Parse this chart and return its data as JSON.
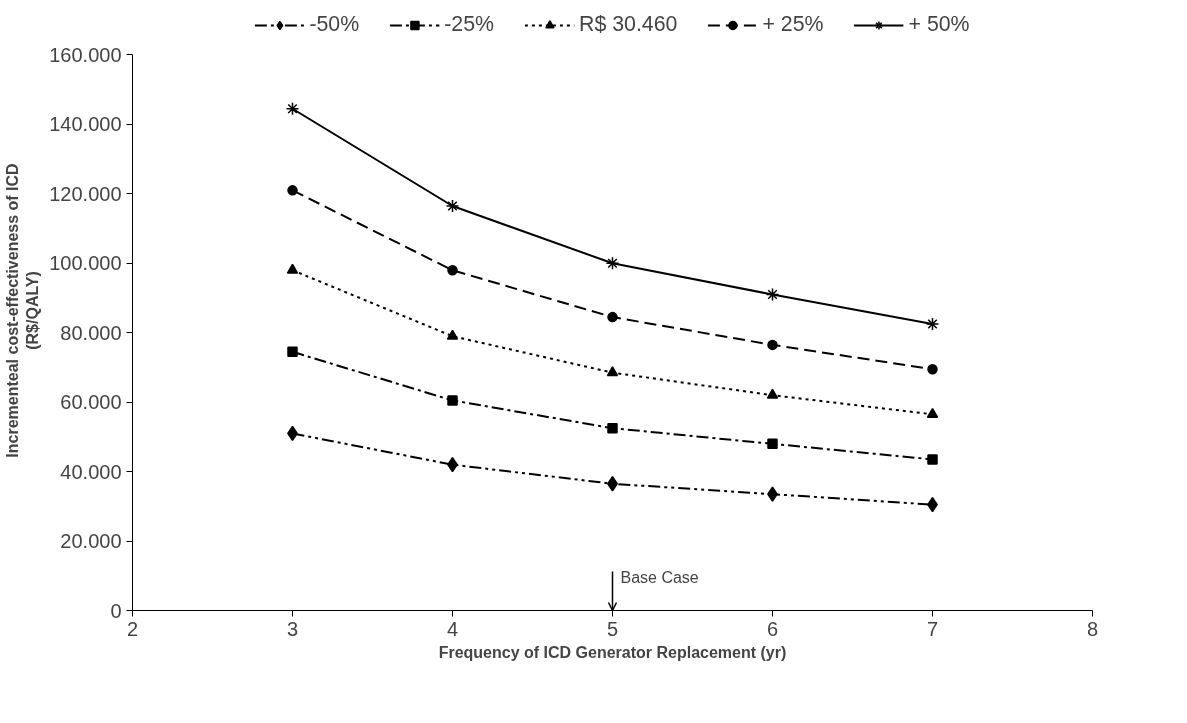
{
  "chart_data": {
    "type": "line",
    "xlabel": "Frequency of ICD Generator Replacement (yr)",
    "ylabel": "Incrementeal cost-effectiveness of ICD\n(R$/QALY)",
    "x": [
      3,
      4,
      5,
      6,
      7
    ],
    "series": [
      {
        "name": "-50%",
        "color": "#000000",
        "marker": "diamond",
        "line_style": "dashdotdot",
        "values": [
          51000,
          42000,
          36500,
          33500,
          30500
        ]
      },
      {
        "name": "-25%",
        "color": "#000000",
        "marker": "square",
        "line_style": "dashdot",
        "values": [
          74500,
          60500,
          52500,
          48000,
          43500
        ]
      },
      {
        "name": "R$ 30.460",
        "color": "#000000",
        "marker": "triangle",
        "line_style": "dotted",
        "values": [
          98000,
          79000,
          68500,
          62000,
          56500
        ]
      },
      {
        "name": "+ 25%",
        "color": "#000000",
        "marker": "circle",
        "line_style": "dashed",
        "values": [
          121000,
          98000,
          84500,
          76500,
          69500
        ]
      },
      {
        "name": "+ 50%",
        "color": "#000000",
        "marker": "cross",
        "line_style": "solid",
        "values": [
          144500,
          116500,
          100000,
          91000,
          82500
        ]
      }
    ],
    "xlim": [
      2,
      8
    ],
    "xticks": [
      2,
      3,
      4,
      5,
      6,
      7,
      8
    ],
    "ylim": [
      0,
      160000
    ],
    "yticks": [
      0,
      {
        "value": 20000,
        "label": "20.000"
      },
      {
        "value": 40000,
        "label": "40.000"
      },
      {
        "value": 60000,
        "label": "60.000"
      },
      {
        "value": 80000,
        "label": "80.000"
      },
      {
        "value": 100000,
        "label": "100.000"
      },
      {
        "value": 120000,
        "label": "120.000"
      },
      {
        "value": 140000,
        "label": "140.000"
      },
      {
        "value": 160000,
        "label": "160.000"
      }
    ],
    "grid": false,
    "legend": "top",
    "annotations": [
      "Base Case"
    ]
  }
}
